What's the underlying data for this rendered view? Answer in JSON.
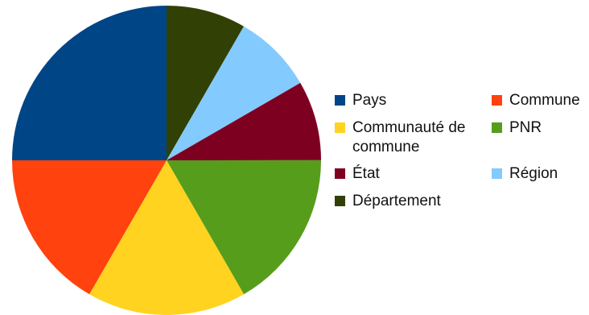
{
  "chart_data": {
    "type": "pie",
    "title": "",
    "slices": [
      {
        "label": "Département",
        "value": 8.33,
        "color": "#314004"
      },
      {
        "label": "Région",
        "value": 8.33,
        "color": "#83CAFF"
      },
      {
        "label": "État",
        "value": 8.33,
        "color": "#7E0021"
      },
      {
        "label": "PNR",
        "value": 16.67,
        "color": "#579D1C"
      },
      {
        "label": "Communauté de commune",
        "value": 16.67,
        "color": "#FFD320"
      },
      {
        "label": "Commune",
        "value": 16.67,
        "color": "#FF420E"
      },
      {
        "label": "Pays",
        "value": 25.0,
        "color": "#004586"
      }
    ],
    "legend": {
      "position": "right",
      "items": [
        {
          "label": "Pays",
          "color": "#004586"
        },
        {
          "label": "Commune",
          "color": "#FF420E"
        },
        {
          "label": "Communauté de commune",
          "color": "#FFD320"
        },
        {
          "label": "PNR",
          "color": "#579D1C"
        },
        {
          "label": "État",
          "color": "#7E0021"
        },
        {
          "label": "Région",
          "color": "#83CAFF"
        },
        {
          "label": "Département",
          "color": "#314004"
        }
      ]
    }
  }
}
